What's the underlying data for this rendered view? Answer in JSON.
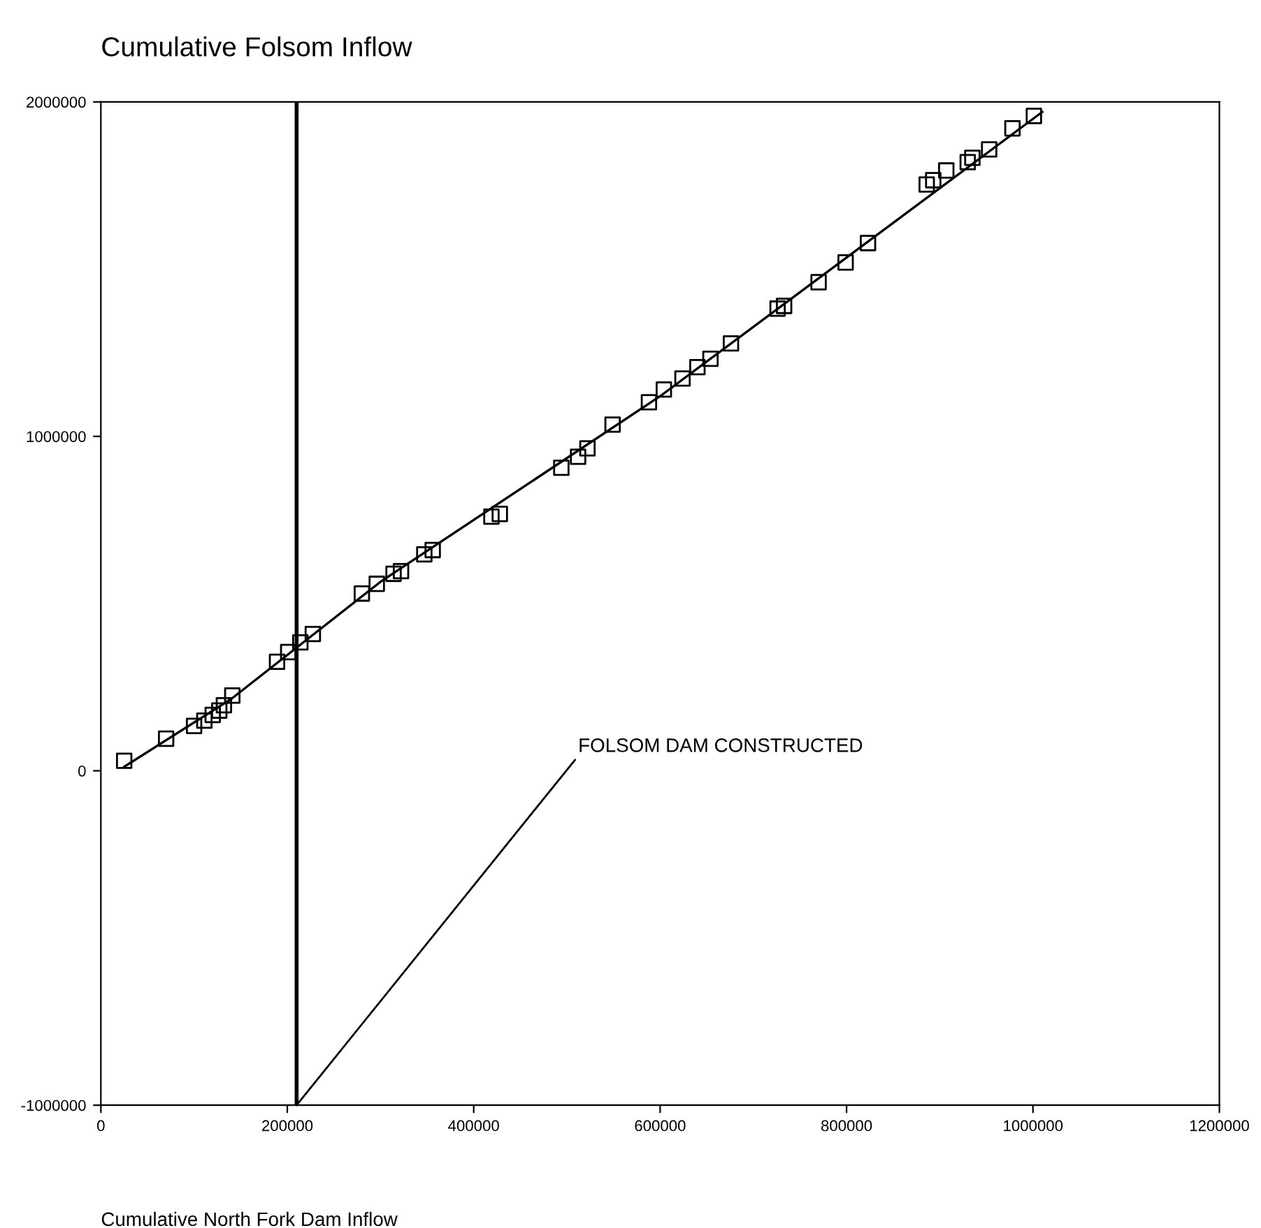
{
  "chart_data": {
    "type": "scatter",
    "ylabel": "Cumulative Folsom Inflow",
    "xlabel": "Cumulative North Fork Dam Inflow",
    "grid": false,
    "legend": false,
    "xlim": [
      0,
      1200000
    ],
    "xticks": [
      0,
      200000,
      400000,
      600000,
      800000,
      1000000,
      1200000
    ],
    "ylim": [
      -1000000,
      2000000
    ],
    "yticks": [
      -1000000,
      0,
      1000000,
      2000000
    ],
    "ref_lines": [
      {
        "axis": "x",
        "value": 210000,
        "color": "#000000"
      }
    ],
    "annotations": [
      {
        "text": "FOLSOM DAM CONSTRUCTED",
        "x": 210000,
        "y": -1000000
      }
    ],
    "series": [
      {
        "marker": "square",
        "color": "#000000",
        "x": [
          25000,
          70000,
          100000,
          111000,
          120000,
          127000,
          132000,
          141000,
          189000,
          201000,
          214000,
          227400,
          280000,
          296000,
          314000,
          322000,
          347000,
          356000,
          419000,
          428000,
          494000,
          512000,
          522000,
          549000,
          588000,
          604000,
          624000,
          640000,
          654000,
          676000,
          726000,
          733000,
          770000,
          799000,
          823000,
          886000,
          893000,
          907000,
          930000,
          935000,
          953000,
          978000,
          1001000
        ],
        "values": [
          30000,
          96000,
          134000,
          150000,
          167000,
          180000,
          196000,
          225000,
          326000,
          355000,
          384000,
          409000,
          530000,
          559000,
          589000,
          597000,
          647000,
          660000,
          760000,
          768000,
          906000,
          939000,
          964000,
          1035000,
          1102000,
          1140000,
          1173000,
          1207000,
          1232000,
          1278000,
          1382000,
          1390000,
          1461000,
          1520000,
          1578000,
          1753000,
          1766000,
          1795000,
          1820000,
          1833000,
          1858000,
          1921000,
          1958000
        ]
      },
      {
        "type": "line",
        "marker": "none",
        "color": "#000000",
        "x": [
          25000,
          140000,
          300000,
          600000,
          1010000
        ],
        "values": [
          12000,
          215000,
          565000,
          1120000,
          1970000
        ]
      }
    ]
  }
}
